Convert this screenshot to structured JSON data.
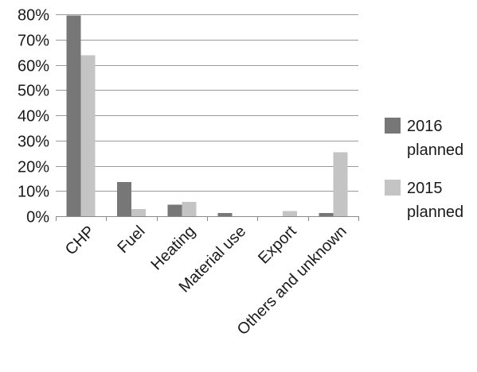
{
  "chart_data": {
    "type": "bar",
    "categories": [
      "CHP",
      "Fuel",
      "Heating",
      "Material use",
      "Export",
      "Others and unknown"
    ],
    "series": [
      {
        "name": "2016 planned",
        "values": [
          79.5,
          13.5,
          4.5,
          1.2,
          0.0,
          1.2
        ],
        "color": "#777777"
      },
      {
        "name": "2015 planned",
        "values": [
          63.8,
          2.8,
          5.7,
          0.0,
          2.0,
          25.4
        ],
        "color": "#c4c4c4"
      }
    ],
    "y_ticks": [
      "0%",
      "10%",
      "20%",
      "30%",
      "40%",
      "50%",
      "60%",
      "70%",
      "80%"
    ],
    "ylim": [
      0,
      80
    ],
    "y_unit": "percent",
    "grid": true,
    "legend_position": "right",
    "legend": [
      {
        "line1": "2016",
        "line2": "planned"
      },
      {
        "line1": "2015",
        "line2": "planned"
      }
    ]
  }
}
